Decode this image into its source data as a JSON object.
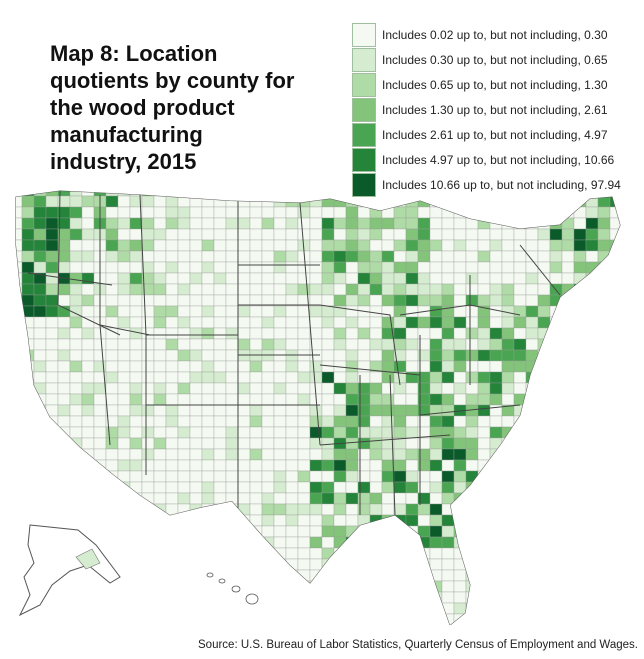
{
  "title": "Map 8: Location quotients by county for the wood product manufacturing industry, 2015",
  "legend": [
    {
      "label": "Includes 0.02 up to, but not including, 0.30",
      "color": "#f4faf1"
    },
    {
      "label": "Includes 0.30 up to, but not including, 0.65",
      "color": "#d5ecd0"
    },
    {
      "label": "Includes 0.65 up to, but not including, 1.30",
      "color": "#afdba6"
    },
    {
      "label": "Includes 1.30 up to, but not including, 2.61",
      "color": "#83c47a"
    },
    {
      "label": "Includes 2.61 up to, but not including, 4.97",
      "color": "#4aa552"
    },
    {
      "label": "Includes 4.97 up to, but not including, 10.66",
      "color": "#23843a"
    },
    {
      "label": "Includes 10.66 up to, but not including, 97.94",
      "color": "#0b5b2a"
    }
  ],
  "source": "Source: U.S. Bureau of Labor Statistics, Quarterly Census of Employment and Wages."
}
